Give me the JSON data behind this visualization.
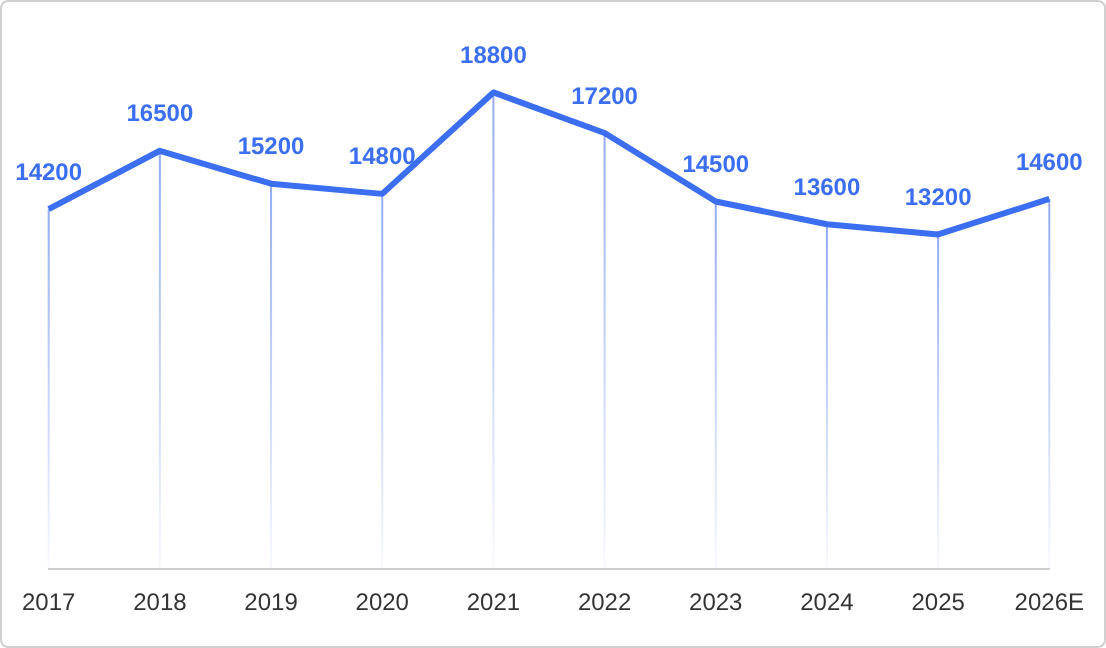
{
  "chart_data": {
    "type": "line",
    "categories": [
      "2017",
      "2018",
      "2019",
      "2020",
      "2021",
      "2022",
      "2023",
      "2024",
      "2025",
      "2026E"
    ],
    "series": [
      {
        "color": "#3b6ef0",
        "values": [
          14200,
          16500,
          15200,
          14800,
          18800,
          17200,
          14500,
          13600,
          13200,
          14600
        ]
      }
    ],
    "data_labels": true,
    "grid": "x",
    "legend": false,
    "marker": "none",
    "line_style": "solid",
    "tick_labels": "x"
  }
}
